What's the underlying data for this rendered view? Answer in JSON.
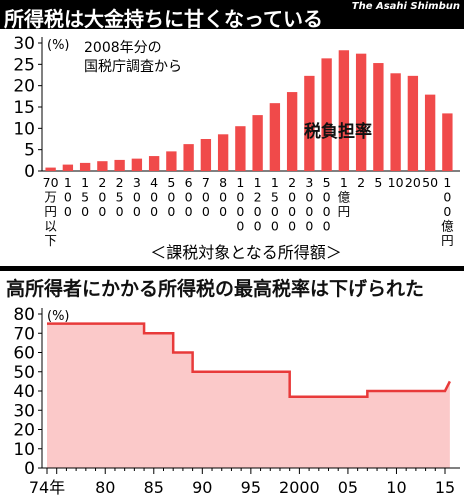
{
  "credit": "The Asahi Shimbun",
  "colors": {
    "bar": "#f04a4a",
    "line": "#e83a3a",
    "area": "#fbc9c9",
    "header": "#000000"
  },
  "chart_data": [
    {
      "type": "bar",
      "title": "所得税は大金持ちに甘くなっている",
      "unit_label": "(%)",
      "note": [
        "2008年分の",
        "国税庁調査から"
      ],
      "series_label": "税負担率",
      "xlabel": "＜課税対象となる所得額＞",
      "ylim": [
        0,
        30
      ],
      "yticks": [
        "0",
        "5",
        "10",
        "15",
        "20",
        "25",
        "30"
      ],
      "categories": [
        "70万円以下",
        "100",
        "150",
        "200",
        "250",
        "300",
        "400",
        "500",
        "600",
        "700",
        "800",
        "1000",
        "1200",
        "1500",
        "2000",
        "3000",
        "5000",
        "1億円",
        "2",
        "5",
        "10",
        "20",
        "50",
        "100億円"
      ],
      "tick_labels": [
        "70\n万\n円\n以\n下",
        "1\n0\n0",
        "1\n5\n0",
        "2\n0\n0",
        "2\n5\n0",
        "3\n0\n0",
        "4\n0\n0",
        "5\n0\n0",
        "6\n0\n0",
        "7\n0\n0",
        "8\n0\n0",
        "1\n0\n0\n0",
        "1\n2\n0\n0",
        "1\n5\n0\n0",
        "2\n0\n0\n0",
        "3\n0\n0\n0",
        "5\n0\n0\n0",
        "1\n億\n円",
        "2",
        "5",
        "10",
        "20",
        "50",
        "1\n0\n0\n億\n円"
      ],
      "values": [
        0.8,
        1.5,
        1.9,
        2.3,
        2.6,
        2.9,
        3.5,
        4.6,
        6.3,
        7.5,
        8.6,
        10.5,
        13.1,
        15.9,
        18.5,
        22.3,
        26.4,
        28.3,
        27.5,
        25.3,
        22.9,
        22.3,
        17.9,
        13.5
      ]
    },
    {
      "type": "area",
      "title": "高所得者にかかる所得税の最高税率は下げられた",
      "unit_label": "(%)",
      "ylim": [
        0,
        80
      ],
      "yticks": [
        "0",
        "10",
        "20",
        "30",
        "40",
        "50",
        "60",
        "70",
        "80"
      ],
      "xlim": [
        1974,
        2015
      ],
      "xticks": [
        {
          "x": 1974,
          "label": "74年"
        },
        {
          "x": 1980,
          "label": "80"
        },
        {
          "x": 1985,
          "label": "85"
        },
        {
          "x": 1990,
          "label": "90"
        },
        {
          "x": 1995,
          "label": "95"
        },
        {
          "x": 2000,
          "label": "2000"
        },
        {
          "x": 2005,
          "label": "05"
        },
        {
          "x": 2010,
          "label": "10"
        },
        {
          "x": 2015,
          "label": "15"
        }
      ],
      "points": [
        [
          1974,
          75
        ],
        [
          1984,
          75
        ],
        [
          1984,
          70
        ],
        [
          1987,
          70
        ],
        [
          1987,
          60
        ],
        [
          1988,
          60
        ],
        [
          1988,
          60
        ],
        [
          1989,
          60
        ],
        [
          1989,
          50
        ],
        [
          1999,
          50
        ],
        [
          1999,
          37
        ],
        [
          2007,
          37
        ],
        [
          2007,
          40
        ],
        [
          2015,
          40
        ],
        [
          2015.5,
          45
        ]
      ]
    }
  ]
}
